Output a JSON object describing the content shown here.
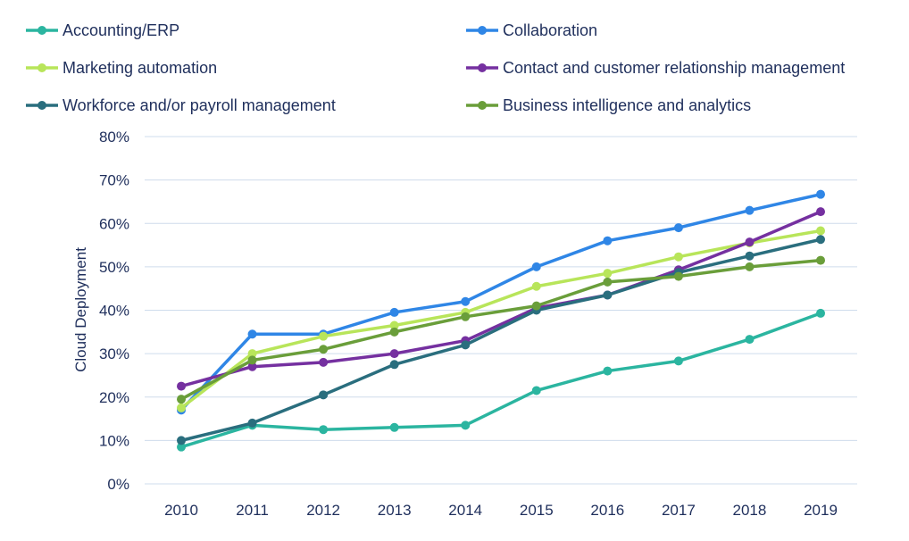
{
  "chart_data": {
    "type": "line",
    "title": "",
    "xlabel": "",
    "ylabel": "Cloud Deployment",
    "x": [
      "2010",
      "2011",
      "2012",
      "2013",
      "2014",
      "2015",
      "2016",
      "2017",
      "2018",
      "2019"
    ],
    "ylim": [
      0,
      80
    ],
    "yticks": [
      0,
      10,
      20,
      30,
      40,
      50,
      60,
      70,
      80
    ],
    "ytick_labels": [
      "0%",
      "10%",
      "20%",
      "30%",
      "40%",
      "50%",
      "60%",
      "70%",
      "80%"
    ],
    "grid": "horizontal",
    "legend_position": "top",
    "series": [
      {
        "name": "Accounting/ERP",
        "color": "#2bb5a0",
        "values": [
          8.5,
          13.5,
          12.5,
          13,
          13.5,
          21.5,
          26,
          28.3,
          33.3,
          39.3
        ]
      },
      {
        "name": "Collaboration",
        "color": "#2f86e6",
        "values": [
          17,
          34.5,
          34.5,
          39.5,
          42,
          50,
          56,
          59,
          63,
          66.7
        ]
      },
      {
        "name": "Marketing automation",
        "color": "#b8e55a",
        "values": [
          17.5,
          30,
          34,
          36.5,
          39.5,
          45.5,
          48.5,
          52.3,
          55.5,
          58.3
        ]
      },
      {
        "name": "Contact and customer relationship management",
        "color": "#7530a0",
        "values": [
          22.5,
          27,
          28,
          30,
          33,
          40.5,
          43.5,
          49.3,
          55.7,
          62.7
        ]
      },
      {
        "name": "Workforce and/or payroll management",
        "color": "#2a6e7e",
        "values": [
          10,
          14,
          20.5,
          27.5,
          32,
          40,
          43.5,
          48.7,
          52.5,
          56.3
        ]
      },
      {
        "name": "Business intelligence and analytics",
        "color": "#6a9e3a",
        "values": [
          19.5,
          28.5,
          31,
          35,
          38.5,
          41,
          46.5,
          47.8,
          50,
          51.5
        ]
      }
    ]
  }
}
